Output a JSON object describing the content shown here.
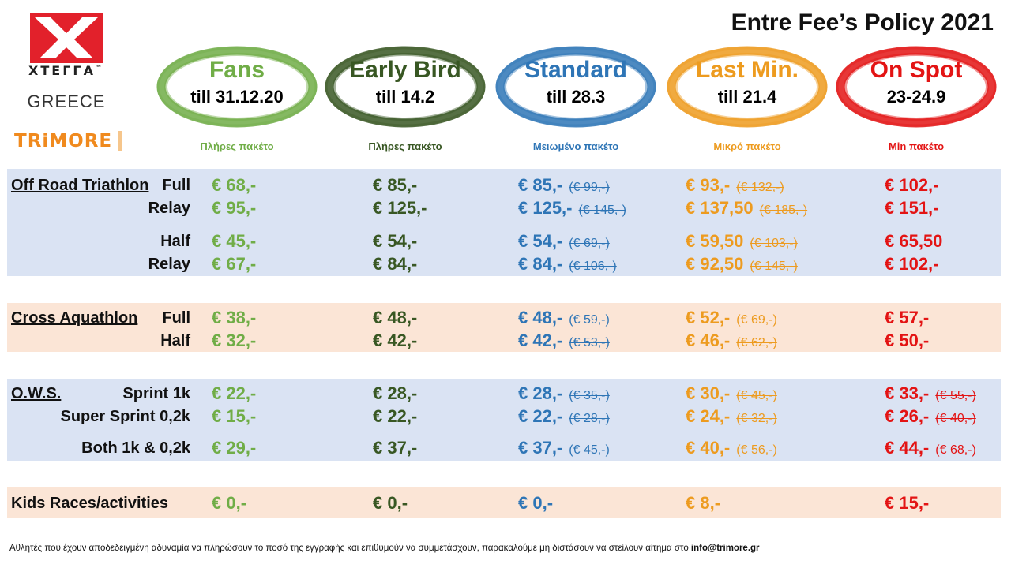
{
  "title": "Entre Fee’s Policy 2021",
  "logos": {
    "xterra": "XTEΓΓA",
    "xterra_tm": "™",
    "greece": "GREECE",
    "trimore": "TRiMORE"
  },
  "colors": {
    "fans": "#70ad47",
    "early_bird": "#385723",
    "standard": "#2e75b6",
    "last_min": "#ed9b1f",
    "on_spot": "#e31414",
    "band_blue": "#dae3f3",
    "band_peach": "#fbe5d6"
  },
  "tiers": [
    {
      "name": "Fans",
      "date": "till 31.12.20",
      "package": "Πλήρες πακέτο"
    },
    {
      "name": "Early Bird",
      "date": "till 14.2",
      "package": "Πλήρες πακέτο"
    },
    {
      "name": "Standard",
      "date": "till 28.3",
      "package": "Μειωμένο πακέτο"
    },
    {
      "name": "Last Min.",
      "date": "till 21.4",
      "package": "Μικρό πακέτο"
    },
    {
      "name": "On Spot",
      "date": "23-24.9",
      "package": "Min πακέτο"
    }
  ],
  "sections": {
    "off_road": {
      "label": "Off Road Triathlon",
      "rows": [
        {
          "sub": "Full",
          "prices": [
            "€ 68,-",
            "€ 85,-",
            "€ 85,-",
            "€ 93,-",
            "€ 102,-"
          ],
          "old": [
            "",
            "",
            "(€ 99,-)",
            "(€ 132,-)",
            ""
          ]
        },
        {
          "sub": "Relay",
          "prices": [
            "€ 95,-",
            "€ 125,-",
            "€ 125,-",
            "€ 137,50",
            "€ 151,-"
          ],
          "old": [
            "",
            "",
            "(€ 145,-)",
            "(€ 185,-)",
            ""
          ]
        },
        {
          "sub": "Half",
          "prices": [
            "€ 45,-",
            "€ 54,-",
            "€ 54,-",
            "€ 59,50",
            "€ 65,50"
          ],
          "old": [
            "",
            "",
            "(€ 69,-)",
            "(€ 103,-)",
            ""
          ]
        },
        {
          "sub": "Relay",
          "prices": [
            "€ 67,-",
            "€ 84,-",
            "€ 84,-",
            "€ 92,50",
            "€ 102,-"
          ],
          "old": [
            "",
            "",
            "(€ 106,-)",
            "(€ 145,-)",
            ""
          ]
        }
      ]
    },
    "aquathlon": {
      "label": "Cross Aquathlon",
      "rows": [
        {
          "sub": "Full",
          "prices": [
            "€ 38,-",
            "€ 48,-",
            "€ 48,-",
            "€ 52,-",
            "€ 57,-"
          ],
          "old": [
            "",
            "",
            "(€ 59,-)",
            "(€ 69,-)",
            ""
          ]
        },
        {
          "sub": "Half",
          "prices": [
            "€ 32,-",
            "€ 42,-",
            "€ 42,-",
            "€ 46,-",
            "€ 50,-"
          ],
          "old": [
            "",
            "",
            "(€ 53,-)",
            "(€ 62,-)",
            ""
          ]
        }
      ]
    },
    "ows": {
      "label": "O.W.S.",
      "rows": [
        {
          "sub": "Sprint 1k",
          "prices": [
            "€ 22,-",
            "€ 28,-",
            "€ 28,-",
            "€ 30,-",
            "€ 33,-"
          ],
          "old": [
            "",
            "",
            "(€ 35,-)",
            "(€ 45,-)",
            "(€ 55,-)"
          ]
        },
        {
          "sub": "Super Sprint 0,2k",
          "prices": [
            "€ 15,-",
            "€ 22,-",
            "€ 22,-",
            "€ 24,-",
            "€ 26,-"
          ],
          "old": [
            "",
            "",
            "(€ 28,-)",
            "(€ 32,-)",
            "(€ 40,-)"
          ]
        },
        {
          "sub": "Both 1k & 0,2k",
          "prices": [
            "€ 29,-",
            "€ 37,-",
            "€ 37,-",
            "€ 40,-",
            "€ 44,-"
          ],
          "old": [
            "",
            "",
            "(€ 45,-)",
            "(€ 56,-)",
            "(€ 68,-)"
          ]
        }
      ]
    },
    "kids": {
      "label": "Kids Races/activities",
      "prices": [
        "€ 0,-",
        "€ 0,-",
        "€ 0,-",
        "€ 8,-",
        "€ 15,-"
      ]
    }
  },
  "footer": {
    "text": "Αθλητές που έχουν αποδεδειγμένη αδυναμία να πληρώσουν το ποσό της εγγραφής και επιθυμούν να συμμετάσχουν, παρακαλούμε μη διστάσουν να στείλουν αίτημα στο ",
    "email": "info@trimore.gr"
  }
}
